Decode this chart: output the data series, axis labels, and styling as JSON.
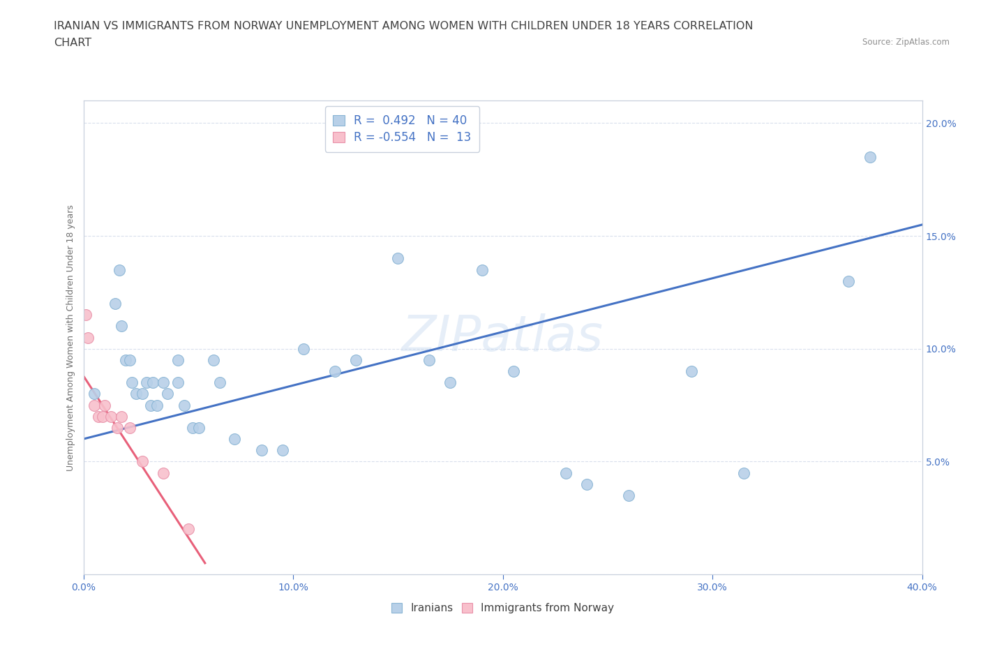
{
  "title_line1": "IRANIAN VS IMMIGRANTS FROM NORWAY UNEMPLOYMENT AMONG WOMEN WITH CHILDREN UNDER 18 YEARS CORRELATION",
  "title_line2": "CHART",
  "source": "Source: ZipAtlas.com",
  "ylabel": "Unemployment Among Women with Children Under 18 years",
  "watermark": "ZIPatlas",
  "legend_R": [
    {
      "label": "R =  0.492   N = 40",
      "facecolor": "#b8d0e8",
      "edgecolor": "#90b8d8"
    },
    {
      "label": "R = -0.554   N =  13",
      "facecolor": "#f8c0cc",
      "edgecolor": "#e890a8"
    }
  ],
  "iranians_scatter": [
    [
      0.5,
      8.0
    ],
    [
      1.5,
      12.0
    ],
    [
      1.7,
      13.5
    ],
    [
      1.8,
      11.0
    ],
    [
      2.0,
      9.5
    ],
    [
      2.2,
      9.5
    ],
    [
      2.3,
      8.5
    ],
    [
      2.5,
      8.0
    ],
    [
      2.8,
      8.0
    ],
    [
      3.0,
      8.5
    ],
    [
      3.2,
      7.5
    ],
    [
      3.3,
      8.5
    ],
    [
      3.5,
      7.5
    ],
    [
      3.8,
      8.5
    ],
    [
      4.0,
      8.0
    ],
    [
      4.5,
      9.5
    ],
    [
      4.5,
      8.5
    ],
    [
      4.8,
      7.5
    ],
    [
      5.2,
      6.5
    ],
    [
      5.5,
      6.5
    ],
    [
      6.2,
      9.5
    ],
    [
      6.5,
      8.5
    ],
    [
      7.2,
      6.0
    ],
    [
      8.5,
      5.5
    ],
    [
      9.5,
      5.5
    ],
    [
      10.5,
      10.0
    ],
    [
      12.0,
      9.0
    ],
    [
      13.0,
      9.5
    ],
    [
      15.0,
      14.0
    ],
    [
      16.5,
      9.5
    ],
    [
      17.5,
      8.5
    ],
    [
      19.0,
      13.5
    ],
    [
      20.5,
      9.0
    ],
    [
      23.0,
      4.5
    ],
    [
      24.0,
      4.0
    ],
    [
      26.0,
      3.5
    ],
    [
      29.0,
      9.0
    ],
    [
      31.5,
      4.5
    ],
    [
      36.5,
      13.0
    ],
    [
      37.5,
      18.5
    ]
  ],
  "norway_scatter": [
    [
      0.1,
      11.5
    ],
    [
      0.2,
      10.5
    ],
    [
      0.5,
      7.5
    ],
    [
      0.7,
      7.0
    ],
    [
      0.9,
      7.0
    ],
    [
      1.0,
      7.5
    ],
    [
      1.3,
      7.0
    ],
    [
      1.6,
      6.5
    ],
    [
      1.8,
      7.0
    ],
    [
      2.2,
      6.5
    ],
    [
      2.8,
      5.0
    ],
    [
      3.8,
      4.5
    ],
    [
      5.0,
      2.0
    ]
  ],
  "blue_line_x": [
    0,
    40
  ],
  "blue_line_y": [
    6.0,
    15.5
  ],
  "pink_line_x": [
    0.0,
    5.8
  ],
  "pink_line_y": [
    8.8,
    0.5
  ],
  "xlim": [
    0,
    40
  ],
  "ylim": [
    -1,
    21
  ],
  "plot_ylim": [
    0,
    21
  ],
  "xticks": [
    0,
    10,
    20,
    30,
    40
  ],
  "yticks": [
    0,
    5,
    10,
    15,
    20
  ],
  "scatter_color_blue": "#b8d0e8",
  "scatter_edge_blue": "#88b4d4",
  "scatter_color_pink": "#f8c0cc",
  "scatter_edge_pink": "#e890a8",
  "line_color_blue": "#4472c4",
  "line_color_pink": "#e8607a",
  "grid_color": "#d0d8e8",
  "bg_color": "#ffffff",
  "title_color": "#404040",
  "axis_label_color": "#707070",
  "tick_label_color": "#4472c4",
  "source_color": "#909090",
  "title_fontsize": 11.5,
  "axis_label_fontsize": 9,
  "tick_fontsize": 10,
  "legend_fontsize": 12,
  "bottom_legend_labels": [
    "Iranians",
    "Immigrants from Norway"
  ]
}
